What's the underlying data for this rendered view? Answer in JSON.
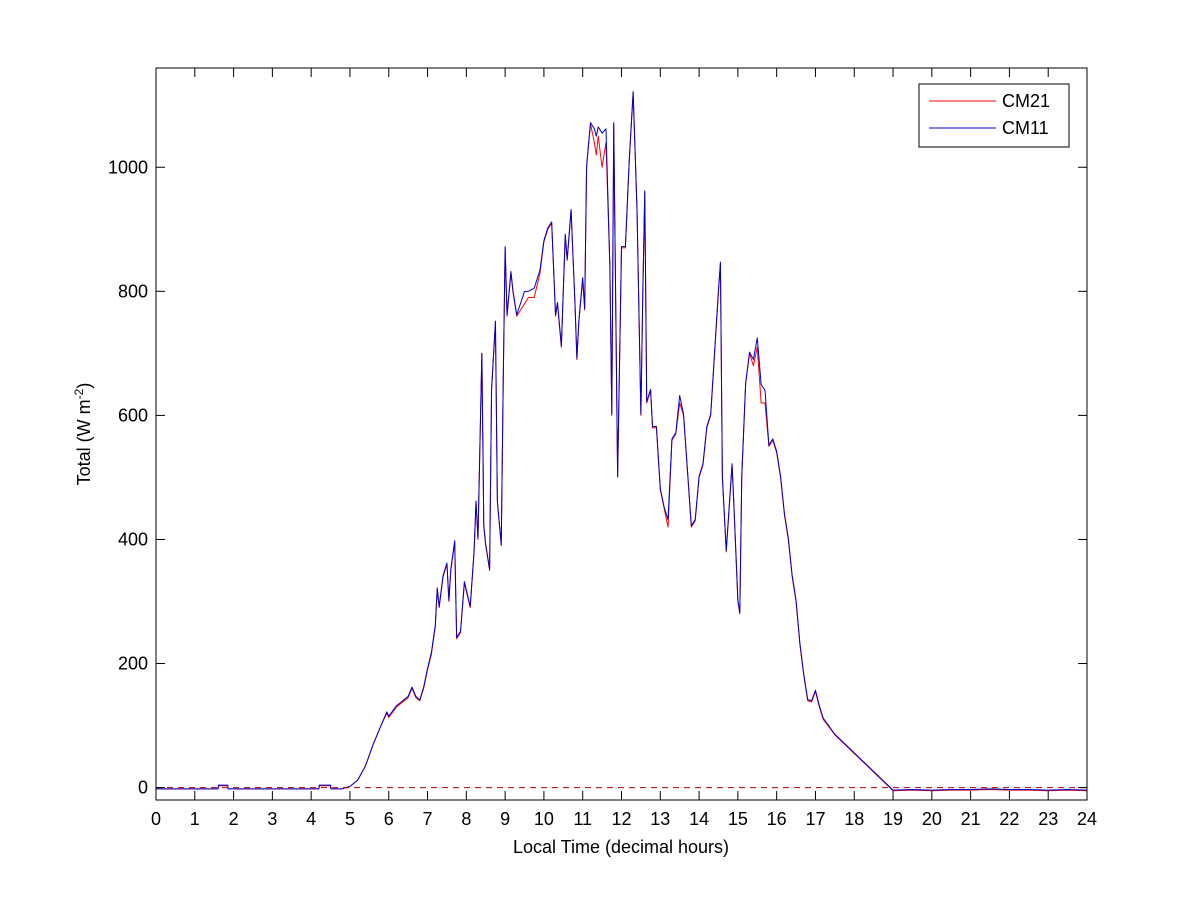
{
  "chart_data": {
    "type": "line",
    "title": "",
    "xlabel": "Local Time (decimal hours)",
    "ylabel_main": "Total (W m",
    "ylabel_sup": "-2",
    "ylabel_close": ")",
    "xlim": [
      0,
      24
    ],
    "ylim": [
      -20,
      1160
    ],
    "xticks": [
      0,
      1,
      2,
      3,
      4,
      5,
      6,
      7,
      8,
      9,
      10,
      11,
      12,
      13,
      14,
      15,
      16,
      17,
      18,
      19,
      20,
      21,
      22,
      23,
      24
    ],
    "xtick_labels": [
      "0",
      "1",
      "2",
      "3",
      "4",
      "5",
      "6",
      "7",
      "8",
      "9",
      "10",
      "11",
      "12",
      "13",
      "14",
      "15",
      "16",
      "17",
      "18",
      "19",
      "20",
      "21",
      "22",
      "23",
      "24"
    ],
    "yticks": [
      0,
      200,
      400,
      600,
      800,
      1000
    ],
    "ytick_labels": [
      "0",
      "200",
      "400",
      "600",
      "800",
      "1000"
    ],
    "grid": false,
    "legend_position": "top-right",
    "reference_line": {
      "y": 0,
      "color": "#b00000",
      "style": "dashed"
    },
    "series": [
      {
        "name": "CM21",
        "color": "#ff0000",
        "points": [
          [
            0,
            -2
          ],
          [
            1,
            -2
          ],
          [
            1.6,
            -2
          ],
          [
            1.61,
            3
          ],
          [
            1.85,
            3
          ],
          [
            1.86,
            -2
          ],
          [
            3,
            -2
          ],
          [
            4.2,
            -2
          ],
          [
            4.21,
            3
          ],
          [
            4.5,
            3
          ],
          [
            4.51,
            -2
          ],
          [
            4.8,
            -2
          ],
          [
            5.0,
            2
          ],
          [
            5.2,
            12
          ],
          [
            5.4,
            35
          ],
          [
            5.6,
            70
          ],
          [
            5.8,
            100
          ],
          [
            5.95,
            120
          ],
          [
            6.0,
            113
          ],
          [
            6.2,
            130
          ],
          [
            6.5,
            145
          ],
          [
            6.6,
            160
          ],
          [
            6.7,
            145
          ],
          [
            6.8,
            140
          ],
          [
            6.9,
            160
          ],
          [
            7.0,
            190
          ],
          [
            7.1,
            215
          ],
          [
            7.2,
            260
          ],
          [
            7.25,
            320
          ],
          [
            7.3,
            290
          ],
          [
            7.4,
            340
          ],
          [
            7.5,
            360
          ],
          [
            7.55,
            300
          ],
          [
            7.6,
            350
          ],
          [
            7.7,
            395
          ],
          [
            7.75,
            240
          ],
          [
            7.85,
            250
          ],
          [
            7.95,
            330
          ],
          [
            8.1,
            290
          ],
          [
            8.2,
            380
          ],
          [
            8.25,
            460
          ],
          [
            8.3,
            400
          ],
          [
            8.4,
            700
          ],
          [
            8.45,
            420
          ],
          [
            8.5,
            390
          ],
          [
            8.6,
            350
          ],
          [
            8.65,
            640
          ],
          [
            8.75,
            750
          ],
          [
            8.8,
            460
          ],
          [
            8.9,
            390
          ],
          [
            8.95,
            650
          ],
          [
            9.0,
            870
          ],
          [
            9.05,
            760
          ],
          [
            9.15,
            830
          ],
          [
            9.2,
            800
          ],
          [
            9.3,
            760
          ],
          [
            9.5,
            780
          ],
          [
            9.6,
            790
          ],
          [
            9.75,
            790
          ],
          [
            9.9,
            830
          ],
          [
            10.0,
            880
          ],
          [
            10.1,
            900
          ],
          [
            10.2,
            910
          ],
          [
            10.3,
            760
          ],
          [
            10.35,
            780
          ],
          [
            10.45,
            710
          ],
          [
            10.55,
            890
          ],
          [
            10.6,
            850
          ],
          [
            10.7,
            930
          ],
          [
            10.8,
            780
          ],
          [
            10.85,
            690
          ],
          [
            10.9,
            750
          ],
          [
            11.0,
            820
          ],
          [
            11.05,
            770
          ],
          [
            11.1,
            1000
          ],
          [
            11.2,
            1070
          ],
          [
            11.3,
            1040
          ],
          [
            11.35,
            1020
          ],
          [
            11.4,
            1050
          ],
          [
            11.5,
            1000
          ],
          [
            11.6,
            1040
          ],
          [
            11.7,
            840
          ],
          [
            11.75,
            600
          ],
          [
            11.8,
            1070
          ],
          [
            11.9,
            500
          ],
          [
            12.0,
            870
          ],
          [
            12.1,
            870
          ],
          [
            12.2,
            1010
          ],
          [
            12.3,
            1120
          ],
          [
            12.4,
            930
          ],
          [
            12.5,
            600
          ],
          [
            12.55,
            800
          ],
          [
            12.6,
            960
          ],
          [
            12.65,
            620
          ],
          [
            12.75,
            640
          ],
          [
            12.8,
            580
          ],
          [
            12.9,
            580
          ],
          [
            13.0,
            480
          ],
          [
            13.1,
            450
          ],
          [
            13.2,
            420
          ],
          [
            13.3,
            560
          ],
          [
            13.4,
            570
          ],
          [
            13.5,
            620
          ],
          [
            13.6,
            600
          ],
          [
            13.7,
            510
          ],
          [
            13.8,
            420
          ],
          [
            13.9,
            430
          ],
          [
            14.0,
            500
          ],
          [
            14.1,
            520
          ],
          [
            14.2,
            580
          ],
          [
            14.3,
            600
          ],
          [
            14.4,
            700
          ],
          [
            14.5,
            800
          ],
          [
            14.55,
            845
          ],
          [
            14.6,
            500
          ],
          [
            14.7,
            380
          ],
          [
            14.85,
            520
          ],
          [
            14.9,
            450
          ],
          [
            15.0,
            300
          ],
          [
            15.05,
            280
          ],
          [
            15.1,
            500
          ],
          [
            15.2,
            650
          ],
          [
            15.3,
            700
          ],
          [
            15.4,
            680
          ],
          [
            15.5,
            710
          ],
          [
            15.6,
            620
          ],
          [
            15.7,
            620
          ],
          [
            15.8,
            550
          ],
          [
            15.9,
            560
          ],
          [
            16.0,
            540
          ],
          [
            16.1,
            500
          ],
          [
            16.2,
            440
          ],
          [
            16.3,
            400
          ],
          [
            16.4,
            340
          ],
          [
            16.5,
            300
          ],
          [
            16.6,
            230
          ],
          [
            16.7,
            180
          ],
          [
            16.8,
            140
          ],
          [
            16.9,
            138
          ],
          [
            17.0,
            155
          ],
          [
            17.1,
            130
          ],
          [
            17.2,
            110
          ],
          [
            17.5,
            85
          ],
          [
            18.0,
            55
          ],
          [
            18.5,
            25
          ],
          [
            19.0,
            -5
          ],
          [
            19.5,
            -4
          ],
          [
            20.0,
            -5
          ],
          [
            20.5,
            -4
          ],
          [
            21.0,
            -4
          ],
          [
            21.5,
            -3
          ],
          [
            22.0,
            -4
          ],
          [
            22.5,
            -4
          ],
          [
            23.0,
            -5
          ],
          [
            23.5,
            -4
          ],
          [
            24.0,
            -5
          ]
        ]
      },
      {
        "name": "CM11",
        "color": "#0000cc",
        "points": [
          [
            0,
            -2
          ],
          [
            1,
            -2
          ],
          [
            1.6,
            -2
          ],
          [
            1.61,
            4
          ],
          [
            1.85,
            4
          ],
          [
            1.86,
            -2
          ],
          [
            3,
            -2
          ],
          [
            4.2,
            -2
          ],
          [
            4.21,
            4
          ],
          [
            4.5,
            4
          ],
          [
            4.51,
            -2
          ],
          [
            4.8,
            -2
          ],
          [
            5.0,
            2
          ],
          [
            5.2,
            12
          ],
          [
            5.4,
            35
          ],
          [
            5.6,
            70
          ],
          [
            5.8,
            100
          ],
          [
            5.95,
            122
          ],
          [
            6.0,
            115
          ],
          [
            6.2,
            132
          ],
          [
            6.5,
            147
          ],
          [
            6.6,
            162
          ],
          [
            6.7,
            147
          ],
          [
            6.8,
            141
          ],
          [
            6.9,
            162
          ],
          [
            7.0,
            192
          ],
          [
            7.1,
            218
          ],
          [
            7.2,
            262
          ],
          [
            7.25,
            322
          ],
          [
            7.3,
            292
          ],
          [
            7.4,
            342
          ],
          [
            7.5,
            362
          ],
          [
            7.55,
            302
          ],
          [
            7.6,
            352
          ],
          [
            7.7,
            398
          ],
          [
            7.75,
            242
          ],
          [
            7.85,
            252
          ],
          [
            7.95,
            332
          ],
          [
            8.1,
            292
          ],
          [
            8.2,
            382
          ],
          [
            8.25,
            462
          ],
          [
            8.3,
            402
          ],
          [
            8.4,
            700
          ],
          [
            8.45,
            422
          ],
          [
            8.5,
            392
          ],
          [
            8.6,
            352
          ],
          [
            8.65,
            642
          ],
          [
            8.75,
            752
          ],
          [
            8.8,
            462
          ],
          [
            8.9,
            392
          ],
          [
            8.95,
            652
          ],
          [
            9.0,
            872
          ],
          [
            9.05,
            762
          ],
          [
            9.15,
            832
          ],
          [
            9.2,
            802
          ],
          [
            9.3,
            762
          ],
          [
            9.5,
            800
          ],
          [
            9.6,
            800
          ],
          [
            9.75,
            805
          ],
          [
            9.9,
            835
          ],
          [
            10.0,
            882
          ],
          [
            10.1,
            902
          ],
          [
            10.2,
            912
          ],
          [
            10.3,
            762
          ],
          [
            10.35,
            782
          ],
          [
            10.45,
            712
          ],
          [
            10.55,
            892
          ],
          [
            10.6,
            852
          ],
          [
            10.7,
            932
          ],
          [
            10.8,
            782
          ],
          [
            10.85,
            692
          ],
          [
            10.9,
            752
          ],
          [
            11.0,
            822
          ],
          [
            11.05,
            772
          ],
          [
            11.1,
            1002
          ],
          [
            11.2,
            1072
          ],
          [
            11.3,
            1062
          ],
          [
            11.35,
            1050
          ],
          [
            11.4,
            1065
          ],
          [
            11.5,
            1055
          ],
          [
            11.6,
            1062
          ],
          [
            11.7,
            842
          ],
          [
            11.75,
            602
          ],
          [
            11.8,
            1072
          ],
          [
            11.9,
            502
          ],
          [
            12.0,
            872
          ],
          [
            12.1,
            872
          ],
          [
            12.2,
            1012
          ],
          [
            12.3,
            1122
          ],
          [
            12.4,
            932
          ],
          [
            12.5,
            602
          ],
          [
            12.55,
            802
          ],
          [
            12.6,
            962
          ],
          [
            12.65,
            622
          ],
          [
            12.75,
            642
          ],
          [
            12.8,
            582
          ],
          [
            12.9,
            582
          ],
          [
            13.0,
            482
          ],
          [
            13.1,
            452
          ],
          [
            13.2,
            432
          ],
          [
            13.3,
            562
          ],
          [
            13.4,
            572
          ],
          [
            13.5,
            632
          ],
          [
            13.6,
            602
          ],
          [
            13.7,
            512
          ],
          [
            13.8,
            422
          ],
          [
            13.9,
            432
          ],
          [
            14.0,
            502
          ],
          [
            14.1,
            522
          ],
          [
            14.2,
            582
          ],
          [
            14.3,
            602
          ],
          [
            14.4,
            702
          ],
          [
            14.5,
            802
          ],
          [
            14.55,
            847
          ],
          [
            14.6,
            502
          ],
          [
            14.7,
            382
          ],
          [
            14.85,
            522
          ],
          [
            14.9,
            452
          ],
          [
            15.0,
            302
          ],
          [
            15.05,
            282
          ],
          [
            15.1,
            502
          ],
          [
            15.2,
            652
          ],
          [
            15.3,
            702
          ],
          [
            15.4,
            690
          ],
          [
            15.5,
            725
          ],
          [
            15.6,
            650
          ],
          [
            15.7,
            640
          ],
          [
            15.8,
            552
          ],
          [
            15.9,
            562
          ],
          [
            16.0,
            542
          ],
          [
            16.1,
            502
          ],
          [
            16.2,
            442
          ],
          [
            16.3,
            402
          ],
          [
            16.4,
            342
          ],
          [
            16.5,
            302
          ],
          [
            16.6,
            232
          ],
          [
            16.7,
            182
          ],
          [
            16.8,
            142
          ],
          [
            16.9,
            140
          ],
          [
            17.0,
            157
          ],
          [
            17.1,
            132
          ],
          [
            17.2,
            112
          ],
          [
            17.5,
            86
          ],
          [
            18.0,
            56
          ],
          [
            18.5,
            26
          ],
          [
            19.0,
            -4
          ],
          [
            19.5,
            -3
          ],
          [
            20.0,
            -4
          ],
          [
            20.5,
            -3
          ],
          [
            21.0,
            -3
          ],
          [
            21.5,
            -2
          ],
          [
            22.0,
            -3
          ],
          [
            22.5,
            -3
          ],
          [
            23.0,
            -4
          ],
          [
            23.5,
            -3
          ],
          [
            24.0,
            -4
          ]
        ]
      }
    ]
  }
}
